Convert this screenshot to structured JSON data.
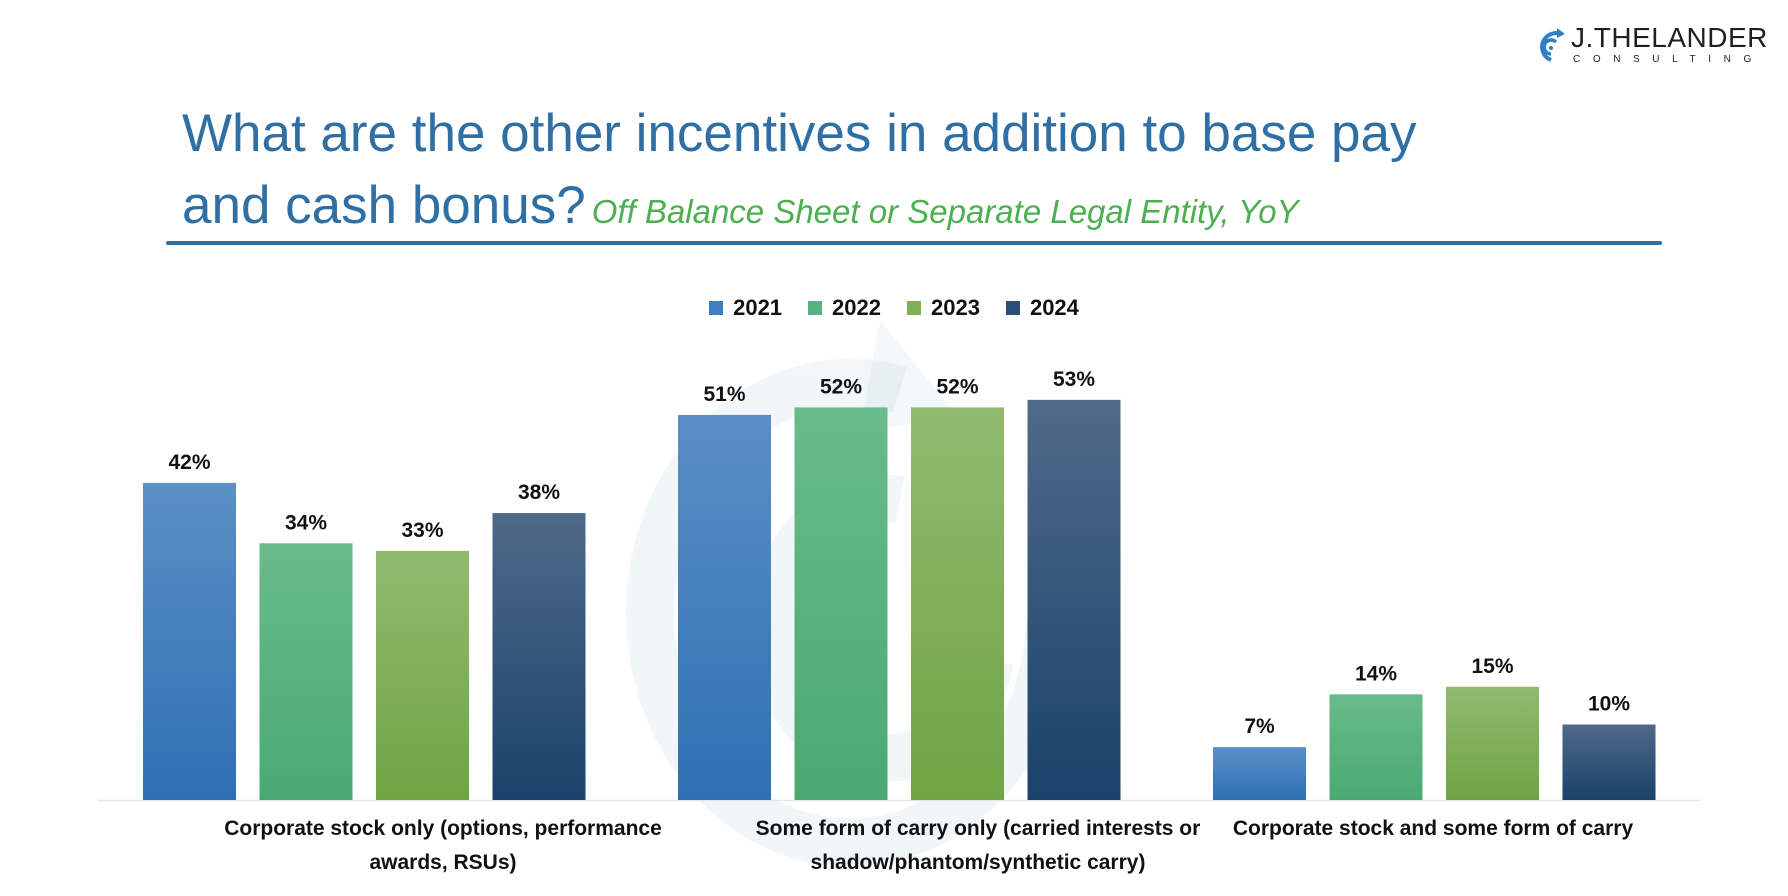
{
  "logo": {
    "name": "J.THELANDER",
    "tagline": "CONSULTING",
    "icon": "spiral-arrow-icon"
  },
  "title": {
    "line1": "What are the other incentives in addition to base pay",
    "line2": "and cash bonus?",
    "subtitle": "Off Balance Sheet or Separate Legal Entity, YoY"
  },
  "colors": {
    "title": "#2f6fa4",
    "subtitle": "#4caf50",
    "divider": "#2e73a6"
  },
  "chart_data": {
    "type": "bar",
    "title": "What are the other incentives in addition to base pay and cash bonus?",
    "subtitle": "Off Balance Sheet or Separate Legal Entity, YoY",
    "xlabel": "",
    "ylabel": "",
    "ylim": [
      0,
      60
    ],
    "grid": false,
    "legend_position": "top-center",
    "categories": [
      "Corporate stock only (options, performance awards, RSUs)",
      "Some form of carry only (carried interests or shadow/phantom/synthetic carry)",
      "Corporate stock and some form of carry"
    ],
    "category_label_lines": [
      [
        "Corporate stock only (options, performance",
        "awards, RSUs)"
      ],
      [
        "Some form of carry only (carried interests or",
        "shadow/phantom/synthetic carry)"
      ],
      [
        "Corporate stock and some form of carry"
      ]
    ],
    "series": [
      {
        "name": "2021",
        "values": [
          42,
          51,
          7
        ],
        "labels": [
          "42%",
          "51%",
          "7%"
        ],
        "color_top": "#5b8fc6",
        "color_bottom": "#2e70b3"
      },
      {
        "name": "2022",
        "values": [
          34,
          52,
          14
        ],
        "labels": [
          "34%",
          "52%",
          "14%"
        ],
        "color_top": "#69bb8c",
        "color_bottom": "#4aa973"
      },
      {
        "name": "2023",
        "values": [
          33,
          52,
          15
        ],
        "labels": [
          "33%",
          "52%",
          "15%"
        ],
        "color_top": "#91ba6f",
        "color_bottom": "#6fa444"
      },
      {
        "name": "2024",
        "values": [
          38,
          53,
          10
        ],
        "labels": [
          "38%",
          "53%",
          "10%"
        ],
        "color_top": "#4f6a8a",
        "color_bottom": "#1a426a"
      }
    ]
  }
}
